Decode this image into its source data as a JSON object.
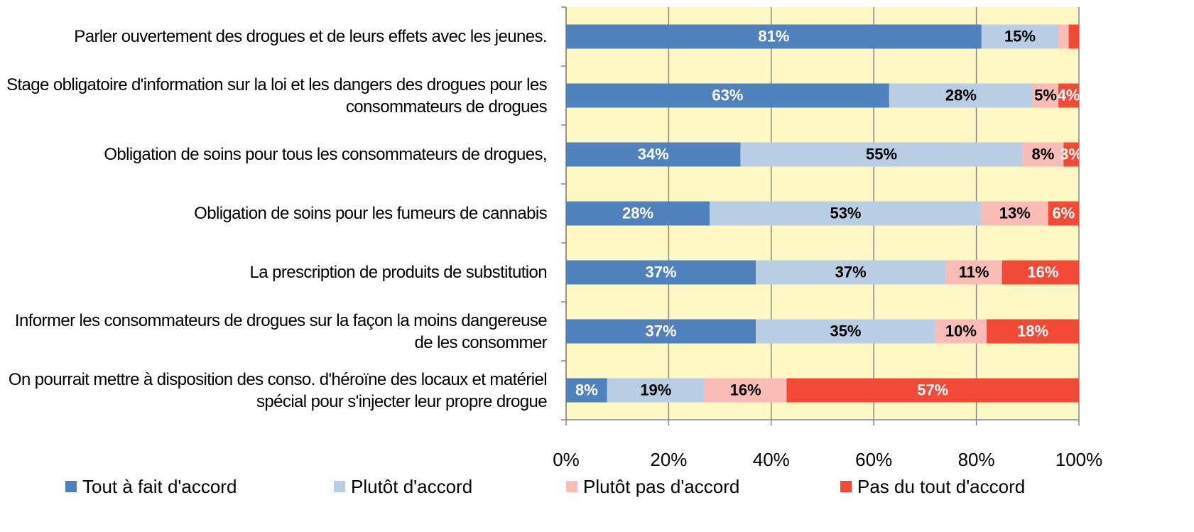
{
  "chart_data": {
    "type": "stacked-bar-horizontal",
    "categories": [
      "Parler ouvertement des drogues et de leurs effets avec les jeunes.",
      "Stage obligatoire d'information sur la loi et les dangers des drogues pour les consommateurs de drogues",
      "Obligation de soins pour tous les consommateurs de drogues,",
      "Obligation de soins pour les fumeurs de cannabis",
      "La prescription de produits de substitution",
      "Informer les consommateurs de drogues sur la façon la moins dangereuse de les consommer",
      "On pourrait mettre à disposition des conso. d'héroïne des locaux et matériel spécial pour s'injecter leur propre drogue"
    ],
    "series": [
      {
        "name": "Tout à fait d'accord",
        "color": "#4f81bd",
        "values": [
          81,
          63,
          34,
          28,
          37,
          37,
          8
        ],
        "value_labels": [
          "81%",
          "63%",
          "34%",
          "28%",
          "37%",
          "37%",
          "8%"
        ]
      },
      {
        "name": "Plutôt d'accord",
        "color": "#b9cde5",
        "values": [
          15,
          28,
          55,
          53,
          37,
          35,
          19
        ],
        "value_labels": [
          "15%",
          "28%",
          "55%",
          "53%",
          "37%",
          "35%",
          "19%"
        ]
      },
      {
        "name": "Plutôt pas d'accord",
        "color": "#f9bcb6",
        "values": [
          2,
          5,
          8,
          13,
          11,
          10,
          16
        ],
        "value_labels": [
          null,
          "5%",
          "8%",
          "13%",
          "11%",
          "10%",
          "16%"
        ]
      },
      {
        "name": "Pas du tout d'accord",
        "color": "#f34a38",
        "values": [
          2,
          4,
          3,
          6,
          16,
          18,
          57
        ],
        "value_labels": [
          null,
          "4%",
          "3%",
          "6%",
          "16%",
          "18%",
          "57%"
        ]
      }
    ],
    "xlim": [
      0,
      100
    ],
    "xticks": [
      {
        "value": 0,
        "label": "0%"
      },
      {
        "value": 20,
        "label": "20%"
      },
      {
        "value": 40,
        "label": "40%"
      },
      {
        "value": 60,
        "label": "60%"
      },
      {
        "value": 80,
        "label": "80%"
      },
      {
        "value": 100,
        "label": "100%"
      }
    ],
    "grid": true,
    "legend": "bottom"
  }
}
